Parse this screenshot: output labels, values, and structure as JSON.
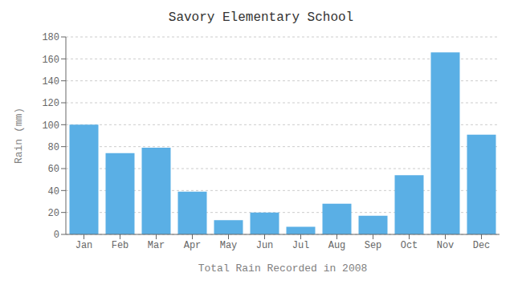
{
  "chart_data": {
    "type": "bar",
    "title": "Savory Elementary School",
    "xlabel": "Total Rain Recorded in 2008",
    "ylabel": "Rain (mm)",
    "categories": [
      "Jan",
      "Feb",
      "Mar",
      "Apr",
      "May",
      "Jun",
      "Jul",
      "Aug",
      "Sep",
      "Oct",
      "Nov",
      "Dec"
    ],
    "values": [
      100,
      74,
      79,
      39,
      13,
      20,
      7,
      28,
      17,
      54,
      166,
      91
    ],
    "color": "#5aafe5",
    "ylim": [
      0,
      180
    ],
    "yticks": [
      0,
      20,
      40,
      60,
      80,
      100,
      120,
      140,
      160,
      180
    ],
    "grid": true
  }
}
